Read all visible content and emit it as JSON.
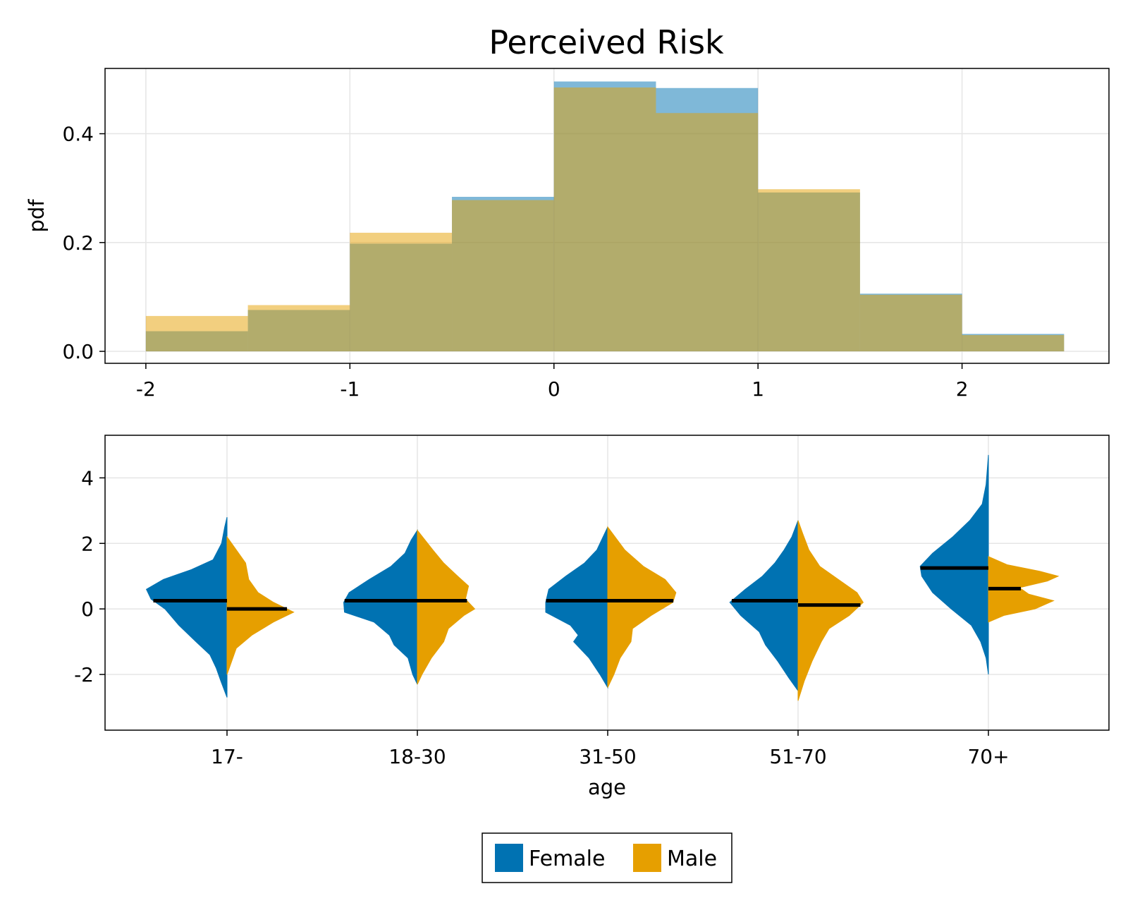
{
  "title": "Perceived Risk",
  "colors": {
    "female": "#0072B2",
    "male": "#E69F00",
    "grid": "#e5e5e5",
    "median": "#000000"
  },
  "chart_data": [
    {
      "type": "histogram",
      "ylabel": "pdf",
      "xlabel": "",
      "xlim": [
        -2.2,
        2.72
      ],
      "ylim": [
        -0.022,
        0.52
      ],
      "xticks": [
        -2,
        -1,
        0,
        1,
        2
      ],
      "yticks": [
        0.0,
        0.2,
        0.4
      ],
      "bin_edges": [
        -2,
        -1.5,
        -1,
        -0.5,
        0,
        0.5,
        1,
        1.5,
        2,
        2.5
      ],
      "series": [
        {
          "name": "Female",
          "color": "#0072B2",
          "opacity": 0.5,
          "values": [
            0.037,
            0.076,
            0.198,
            0.284,
            0.496,
            0.484,
            0.292,
            0.106,
            0.032
          ]
        },
        {
          "name": "Male",
          "color": "#E69F00",
          "opacity": 0.5,
          "values": [
            0.065,
            0.085,
            0.218,
            0.278,
            0.485,
            0.438,
            0.298,
            0.104,
            0.03
          ]
        }
      ],
      "grid": true
    },
    {
      "type": "violin",
      "xlabel": "age",
      "ylabel": "",
      "ylim": [
        -3.7,
        5.3
      ],
      "yticks": [
        -2,
        0,
        2,
        4
      ],
      "categories": [
        "17-",
        "18-30",
        "31-50",
        "51-70",
        "70+"
      ],
      "series": [
        {
          "name": "Female",
          "side": "left",
          "color": "#0072B2",
          "medians": [
            0.25,
            0.25,
            0.25,
            0.25,
            1.25
          ],
          "ranges": [
            [
              -2.7,
              2.8
            ],
            [
              -2.3,
              2.4
            ],
            [
              -2.4,
              2.5
            ],
            [
              -2.5,
              2.7
            ],
            [
              -2.0,
              4.7
            ]
          ],
          "densities": [
            [
              [
                -2.7,
                0.0
              ],
              [
                -2.2,
                0.08
              ],
              [
                -1.8,
                0.14
              ],
              [
                -1.4,
                0.22
              ],
              [
                -1.0,
                0.4
              ],
              [
                -0.5,
                0.62
              ],
              [
                0.0,
                0.8
              ],
              [
                0.3,
                0.98
              ],
              [
                0.6,
                1.04
              ],
              [
                0.9,
                0.82
              ],
              [
                1.2,
                0.46
              ],
              [
                1.5,
                0.18
              ],
              [
                2.0,
                0.07
              ],
              [
                2.5,
                0.03
              ],
              [
                2.8,
                0.0
              ]
            ],
            [
              [
                -2.3,
                0.0
              ],
              [
                -2.0,
                0.06
              ],
              [
                -1.5,
                0.12
              ],
              [
                -1.1,
                0.3
              ],
              [
                -0.8,
                0.36
              ],
              [
                -0.4,
                0.56
              ],
              [
                -0.1,
                0.94
              ],
              [
                0.2,
                0.95
              ],
              [
                0.5,
                0.88
              ],
              [
                0.9,
                0.62
              ],
              [
                1.3,
                0.34
              ],
              [
                1.7,
                0.16
              ],
              [
                2.1,
                0.08
              ],
              [
                2.4,
                0.0
              ]
            ],
            [
              [
                -2.4,
                0.0
              ],
              [
                -2.0,
                0.1
              ],
              [
                -1.5,
                0.24
              ],
              [
                -1.0,
                0.44
              ],
              [
                -0.8,
                0.38
              ],
              [
                -0.5,
                0.48
              ],
              [
                -0.1,
                0.8
              ],
              [
                0.2,
                0.8
              ],
              [
                0.6,
                0.76
              ],
              [
                1.0,
                0.54
              ],
              [
                1.4,
                0.3
              ],
              [
                1.8,
                0.14
              ],
              [
                2.2,
                0.06
              ],
              [
                2.5,
                0.0
              ]
            ],
            [
              [
                -2.5,
                0.0
              ],
              [
                -2.1,
                0.12
              ],
              [
                -1.6,
                0.26
              ],
              [
                -1.1,
                0.42
              ],
              [
                -0.7,
                0.5
              ],
              [
                -0.2,
                0.74
              ],
              [
                0.2,
                0.88
              ],
              [
                0.6,
                0.68
              ],
              [
                1.0,
                0.46
              ],
              [
                1.4,
                0.3
              ],
              [
                1.8,
                0.18
              ],
              [
                2.2,
                0.08
              ],
              [
                2.7,
                0.0
              ]
            ],
            [
              [
                -2.0,
                0.0
              ],
              [
                -1.5,
                0.03
              ],
              [
                -1.0,
                0.1
              ],
              [
                -0.5,
                0.22
              ],
              [
                0.0,
                0.48
              ],
              [
                0.5,
                0.72
              ],
              [
                1.0,
                0.86
              ],
              [
                1.3,
                0.88
              ],
              [
                1.7,
                0.72
              ],
              [
                2.2,
                0.46
              ],
              [
                2.7,
                0.24
              ],
              [
                3.2,
                0.08
              ],
              [
                3.8,
                0.03
              ],
              [
                4.7,
                0.0
              ]
            ]
          ]
        },
        {
          "name": "Male",
          "side": "right",
          "color": "#E69F00",
          "medians": [
            0.0,
            0.25,
            0.25,
            0.12,
            0.62
          ],
          "ranges": [
            [
              -2.0,
              2.2
            ],
            [
              -2.3,
              2.4
            ],
            [
              -2.4,
              2.5
            ],
            [
              -2.8,
              2.7
            ],
            [
              -0.4,
              1.6
            ]
          ],
          "densities": [
            [
              [
                -2.0,
                0.0
              ],
              [
                -1.6,
                0.06
              ],
              [
                -1.2,
                0.12
              ],
              [
                -0.8,
                0.32
              ],
              [
                -0.4,
                0.6
              ],
              [
                -0.1,
                0.86
              ],
              [
                0.2,
                0.6
              ],
              [
                0.5,
                0.4
              ],
              [
                0.9,
                0.28
              ],
              [
                1.4,
                0.24
              ],
              [
                1.8,
                0.12
              ],
              [
                2.2,
                0.0
              ]
            ],
            [
              [
                -2.3,
                0.0
              ],
              [
                -2.0,
                0.06
              ],
              [
                -1.5,
                0.18
              ],
              [
                -1.0,
                0.34
              ],
              [
                -0.6,
                0.4
              ],
              [
                -0.2,
                0.6
              ],
              [
                0.0,
                0.74
              ],
              [
                0.3,
                0.62
              ],
              [
                0.7,
                0.66
              ],
              [
                1.0,
                0.52
              ],
              [
                1.4,
                0.34
              ],
              [
                1.8,
                0.2
              ],
              [
                2.4,
                0.0
              ]
            ],
            [
              [
                -2.4,
                0.0
              ],
              [
                -2.0,
                0.08
              ],
              [
                -1.5,
                0.16
              ],
              [
                -1.0,
                0.3
              ],
              [
                -0.6,
                0.32
              ],
              [
                -0.2,
                0.56
              ],
              [
                0.2,
                0.84
              ],
              [
                0.5,
                0.88
              ],
              [
                0.9,
                0.74
              ],
              [
                1.3,
                0.46
              ],
              [
                1.8,
                0.22
              ],
              [
                2.5,
                0.0
              ]
            ],
            [
              [
                -2.8,
                0.0
              ],
              [
                -2.2,
                0.08
              ],
              [
                -1.6,
                0.18
              ],
              [
                -1.0,
                0.3
              ],
              [
                -0.6,
                0.4
              ],
              [
                -0.2,
                0.66
              ],
              [
                0.2,
                0.84
              ],
              [
                0.5,
                0.76
              ],
              [
                0.9,
                0.52
              ],
              [
                1.3,
                0.28
              ],
              [
                1.8,
                0.14
              ],
              [
                2.3,
                0.06
              ],
              [
                2.7,
                0.0
              ]
            ],
            [
              [
                -0.4,
                0.0
              ],
              [
                -0.2,
                0.2
              ],
              [
                0.0,
                0.6
              ],
              [
                0.25,
                0.84
              ],
              [
                0.45,
                0.52
              ],
              [
                0.65,
                0.4
              ],
              [
                0.85,
                0.76
              ],
              [
                1.0,
                0.9
              ],
              [
                1.15,
                0.66
              ],
              [
                1.35,
                0.24
              ],
              [
                1.6,
                0.0
              ]
            ]
          ]
        }
      ],
      "grid": true
    }
  ],
  "legend": {
    "placement": "bottom-center",
    "items": [
      {
        "label": "Female",
        "color": "#0072B2"
      },
      {
        "label": "Male",
        "color": "#E69F00"
      }
    ]
  }
}
